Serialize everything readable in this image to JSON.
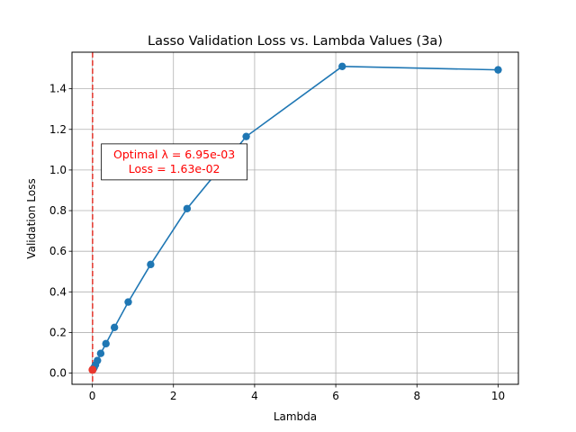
{
  "chart_data": {
    "type": "line",
    "title": "Lasso Validation Loss vs. Lambda Values (3a)",
    "xlabel": "Lambda",
    "ylabel": "Validation Loss",
    "xlim": [
      -0.5,
      10.5
    ],
    "ylim": [
      -0.055,
      1.58
    ],
    "xticks": [
      0,
      2,
      4,
      6,
      8,
      10
    ],
    "yticks": [
      0.0,
      0.2,
      0.4,
      0.6,
      0.8,
      1.0,
      1.2,
      1.4
    ],
    "xtick_labels": [
      "0",
      "2",
      "4",
      "6",
      "8",
      "10"
    ],
    "ytick_labels": [
      "0.0",
      "0.2",
      "0.4",
      "0.6",
      "0.8",
      "1.0",
      "1.2",
      "1.4"
    ],
    "grid": true,
    "series": [
      {
        "color": "#1f77b4",
        "marker": "circle",
        "x": [
          0.00695,
          0.0113,
          0.0183,
          0.0298,
          0.0483,
          0.0785,
          0.127,
          0.207,
          0.336,
          0.546,
          0.886,
          1.438,
          2.336,
          3.793,
          6.158,
          10.0
        ],
        "y": [
          0.0163,
          0.0175,
          0.0195,
          0.0225,
          0.029,
          0.041,
          0.062,
          0.097,
          0.145,
          0.225,
          0.35,
          0.535,
          0.81,
          1.165,
          1.51,
          1.493
        ]
      }
    ],
    "reference_line": {
      "orientation": "vertical",
      "x": 0.00695,
      "color": "#e8382f",
      "style": "dashed"
    },
    "highlight_point": {
      "x": 0.00695,
      "y": 0.0163,
      "color": "#e8382f"
    },
    "annotation": {
      "lines": [
        "Optimal λ = 6.95e-03",
        "Loss = 1.63e-02"
      ],
      "color": "#ff0000",
      "anchor_x": 2.02,
      "anchor_y": 1.04
    }
  }
}
